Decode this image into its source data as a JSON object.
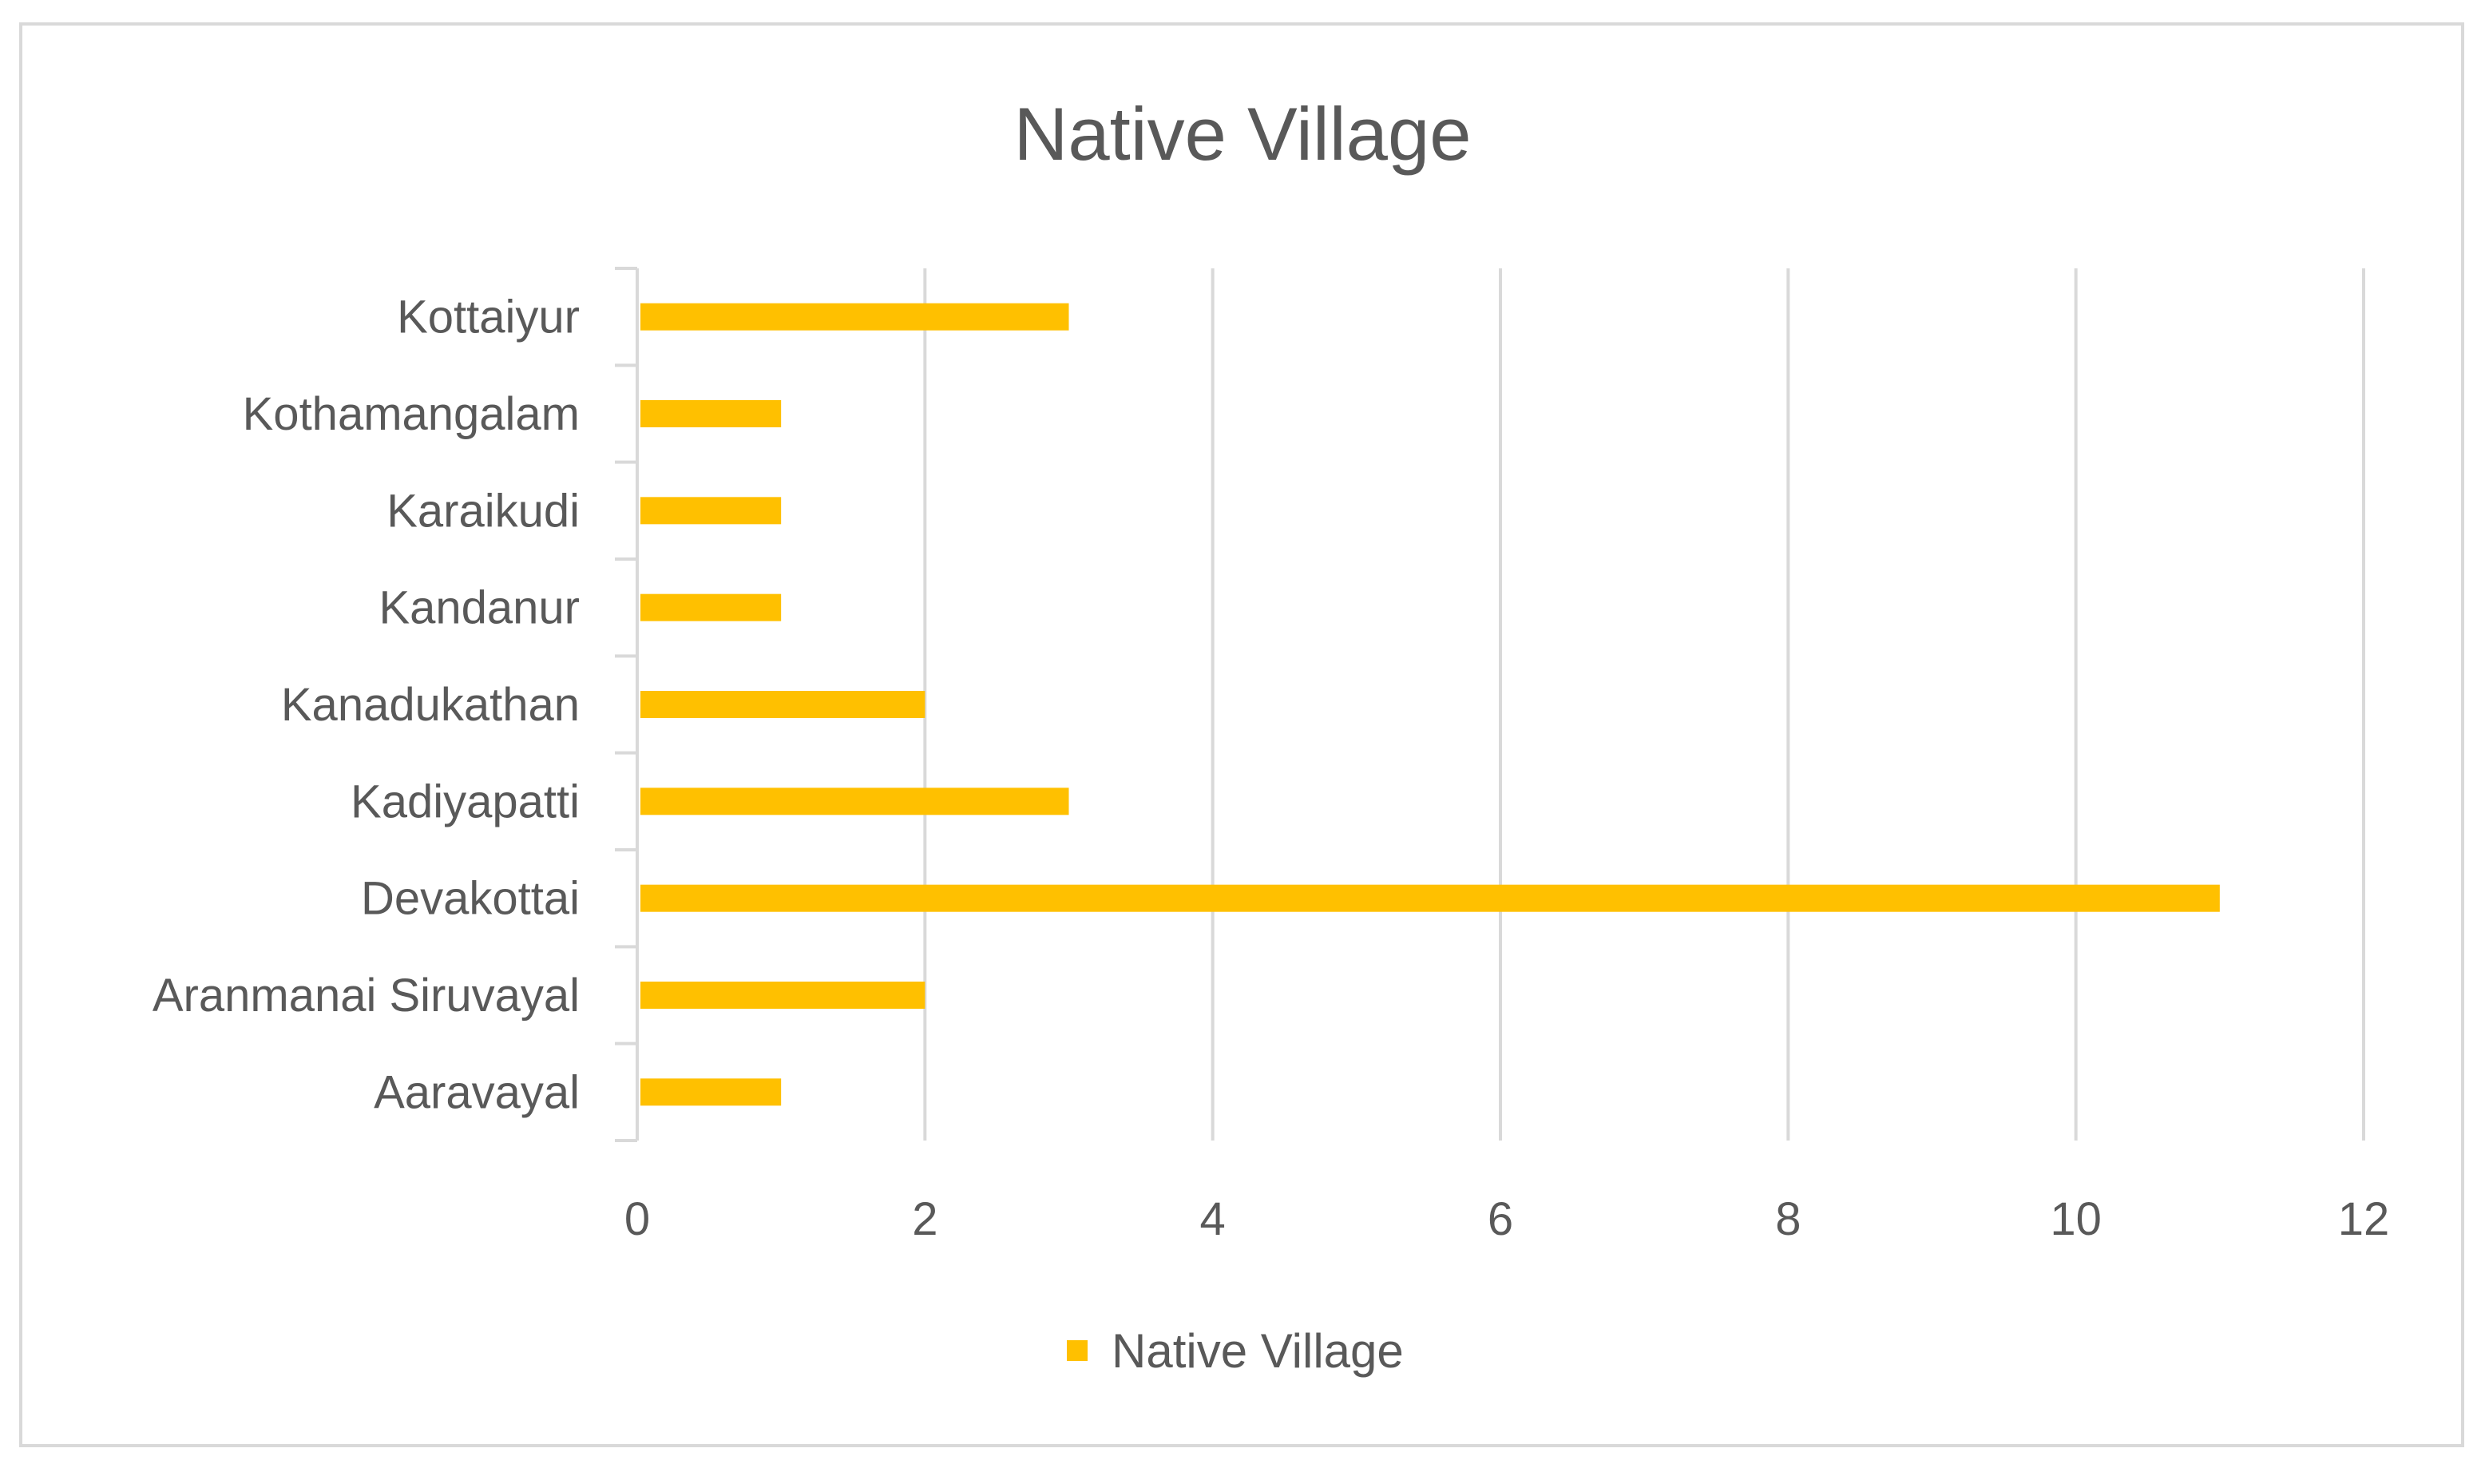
{
  "chart_data": {
    "type": "bar",
    "orientation": "horizontal",
    "title": "Native Village",
    "categories": [
      "Aaravayal",
      "Aranmanai Siruvayal",
      "Devakottai",
      "Kadiyapatti",
      "Kanadukathan",
      "Kandanur",
      "Karaikudi",
      "Kothamangalam",
      "Kottaiyur"
    ],
    "series": [
      {
        "name": "Native Village",
        "values": [
          1,
          2,
          11,
          3,
          2,
          1,
          1,
          1,
          3
        ],
        "color": "#FFC000"
      }
    ],
    "xlim": [
      0,
      12
    ],
    "xticks": [
      0,
      2,
      4,
      6,
      8,
      10,
      12
    ],
    "xlabel": "",
    "ylabel": "",
    "grid": "vertical",
    "legend": "bottom",
    "colors": {
      "bar": "#FFC000",
      "grid": "#d9d9d9",
      "text": "#595959",
      "frame": "#d9d9d9"
    }
  }
}
